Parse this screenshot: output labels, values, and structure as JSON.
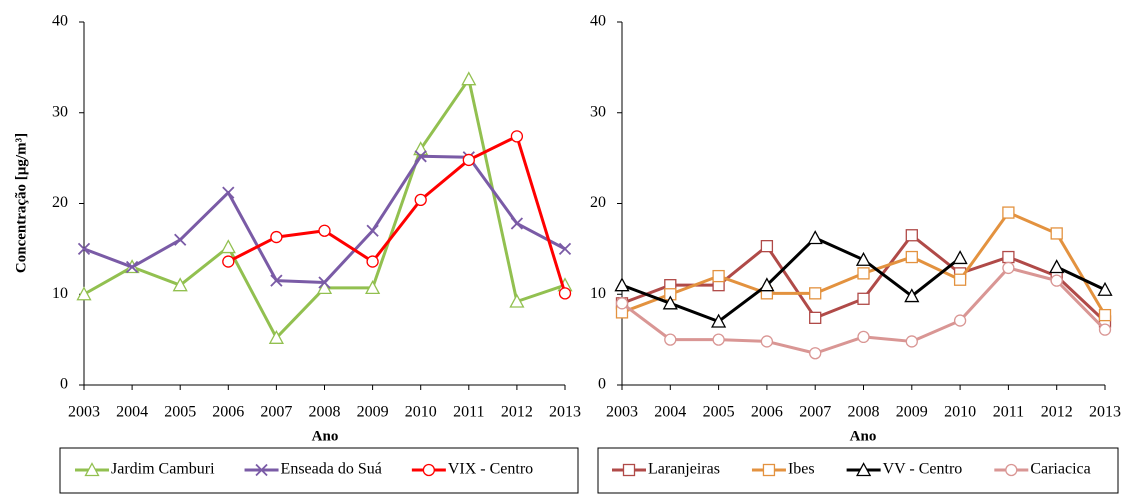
{
  "chart_data": [
    {
      "type": "line",
      "y_label": "Concentração [µg/m³]",
      "x_label": "Ano",
      "categories": [
        "2003",
        "2004",
        "2005",
        "2006",
        "2007",
        "2008",
        "2009",
        "2010",
        "2011",
        "2012",
        "2013"
      ],
      "ylim": [
        0,
        40
      ],
      "yticks": [
        0,
        10,
        20,
        30,
        40
      ],
      "series": [
        {
          "name": "Jardim Camburi",
          "color": "#92c050",
          "marker": "triangle",
          "values": [
            10,
            13,
            11,
            15.2,
            5.2,
            10.7,
            10.7,
            26,
            33.7,
            9.2,
            11
          ]
        },
        {
          "name": "Enseada do Suá",
          "color": "#7a5ba6",
          "marker": "x",
          "values": [
            15,
            13,
            16,
            21.2,
            11.5,
            11.3,
            17,
            25.2,
            25.1,
            17.8,
            15
          ]
        },
        {
          "name": "VIX - Centro",
          "color": "#ff0000",
          "marker": "circle",
          "values": [
            null,
            null,
            null,
            13.6,
            16.3,
            17,
            13.6,
            20.4,
            24.8,
            27.4,
            10.1
          ]
        }
      ]
    },
    {
      "type": "line",
      "x_label": "Ano",
      "categories": [
        "2003",
        "2004",
        "2005",
        "2006",
        "2007",
        "2008",
        "2009",
        "2010",
        "2011",
        "2012",
        "2013"
      ],
      "ylim": [
        0,
        40
      ],
      "yticks": [
        0,
        10,
        20,
        30,
        40
      ],
      "series": [
        {
          "name": "Laranjeiras",
          "color": "#b04a48",
          "marker": "square",
          "values": [
            9,
            11,
            11,
            15.3,
            7.4,
            9.5,
            16.5,
            12.3,
            14.1,
            12,
            7
          ]
        },
        {
          "name": "Ibes",
          "color": "#e3923f",
          "marker": "square",
          "values": [
            8,
            10,
            12,
            10.1,
            10.1,
            12.3,
            14.1,
            11.6,
            19,
            16.7,
            7.7
          ]
        },
        {
          "name": "VV - Centro",
          "color": "#000000",
          "marker": "triangle",
          "values": [
            11,
            9,
            7,
            11,
            16.2,
            13.8,
            9.8,
            14,
            null,
            13,
            10.5
          ]
        },
        {
          "name": "Cariacica",
          "color": "#d99694",
          "marker": "circle",
          "values": [
            9,
            5,
            5,
            4.8,
            3.5,
            5.3,
            4.8,
            7.1,
            12.9,
            11.5,
            6.1
          ]
        }
      ]
    }
  ]
}
